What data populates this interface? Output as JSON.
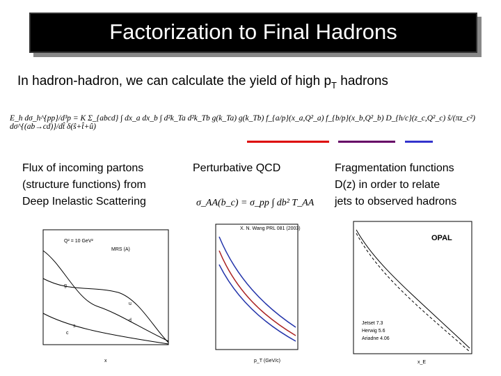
{
  "header": {
    "title": "Factorization to Final Hadrons"
  },
  "subtitle": {
    "before": "In hadron-hadron, we can calculate the yield of high p",
    "sub": "T",
    "after": " hadrons"
  },
  "equation": "E_h dσ_h^{pp}/d³p = K Σ_{abcd} ∫ dx_a dx_b ∫ d²k_Ta d²k_Tb g(k_Ta) g(k_Tb) f_{a/p}(x_a,Q²_a) f_{b/p}(x_b,Q²_b) D_{h/c}(z_c,Q²_c) ŝ/(πz_c²) dσ^{(ab→cd)}/dt̂ δ(ŝ+t̂+û)",
  "columns": [
    {
      "lines": [
        "Flux of incoming partons",
        "(structure functions) from",
        "Deep Inelastic Scattering"
      ]
    },
    {
      "lines": [
        "Perturbative QCD"
      ],
      "formula": "σ_AA(b_c) = σ_pp ∫ db² T_AA"
    },
    {
      "lines": [
        "Fragmentation functions",
        "D(z) in order to relate",
        "jets to observed hadrons"
      ]
    }
  ],
  "plots": [
    {
      "labels": [
        "Q² = 10 GeV²",
        "MRS (A)",
        "u",
        "d",
        "s",
        "c",
        "g",
        "x"
      ]
    },
    {
      "labels": [
        "X. N. Wang PRL 081 (2003)",
        "p_T (GeV/c)"
      ]
    },
    {
      "labels": [
        "OPAL",
        "Jetset 7.3",
        "Herwig 5.6",
        "Ariadne 4.06",
        "x_E"
      ]
    }
  ]
}
